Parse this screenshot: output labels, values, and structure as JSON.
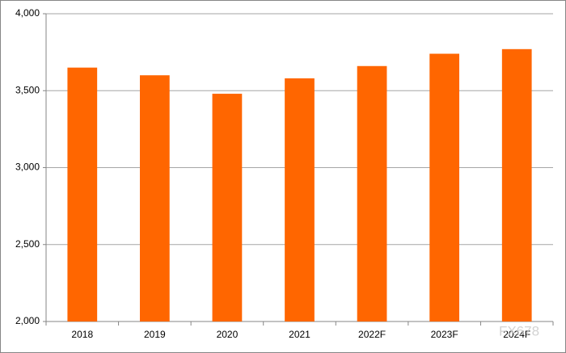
{
  "chart_data": {
    "type": "bar",
    "categories": [
      "2018",
      "2019",
      "2020",
      "2021",
      "2022F",
      "2023F",
      "2024F"
    ],
    "values": [
      3650,
      3600,
      3480,
      3580,
      3660,
      3740,
      3770
    ],
    "color": "#ff6600",
    "ylim": [
      2000,
      4000
    ],
    "yticks": [
      {
        "value": 2000,
        "label": "2,000"
      },
      {
        "value": 2500,
        "label": "2,500"
      },
      {
        "value": 3000,
        "label": "3,000"
      },
      {
        "value": 3500,
        "label": "3,500"
      },
      {
        "value": 4000,
        "label": "4,000"
      }
    ],
    "grid": true,
    "watermark": "FX678"
  }
}
